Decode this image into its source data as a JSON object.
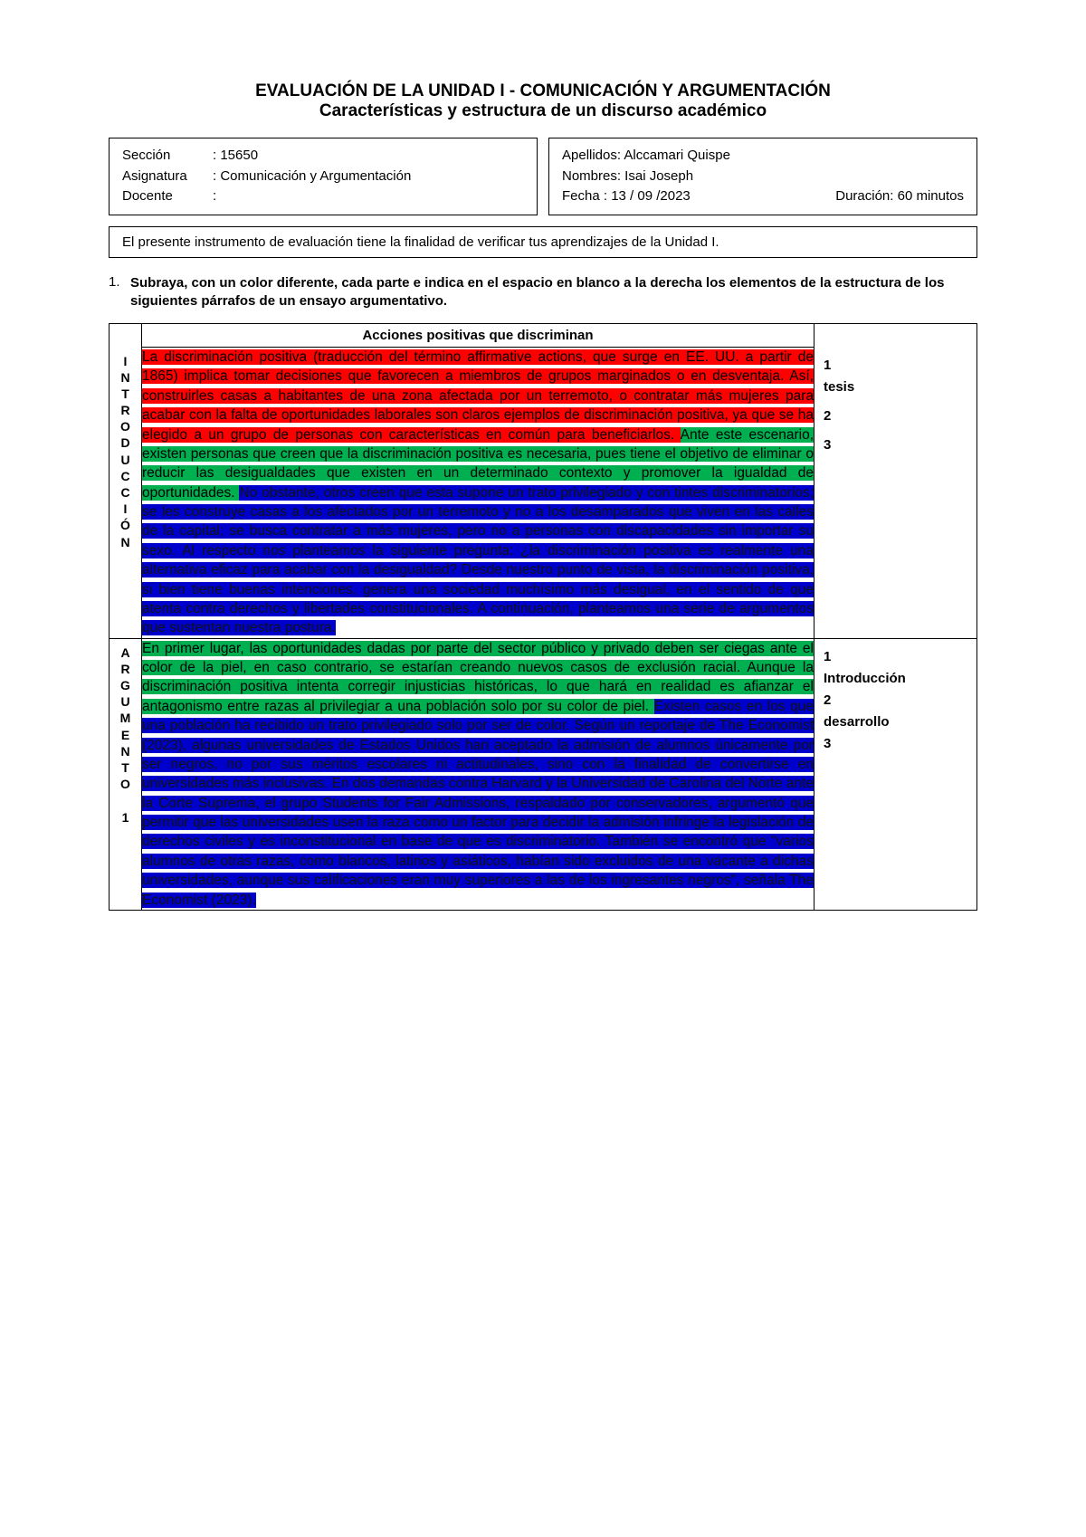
{
  "title_line1": "EVALUACIÓN DE LA UNIDAD I - COMUNICACIÓN Y ARGUMENTACIÓN",
  "title_line2": "Características y estructura de un discurso académico",
  "left_info": {
    "seccion_lbl": "Sección",
    "seccion_val": ": 15650",
    "asignatura_lbl": "Asignatura",
    "asignatura_val": ": Comunicación y Argumentación",
    "docente_lbl": "Docente",
    "docente_val": ":"
  },
  "right_info": {
    "apellidos": "Apellidos: Alccamari Quispe",
    "nombres": "Nombres: Isai Joseph",
    "fecha": "Fecha   :  13 / 09 /2023",
    "duracion": "Duración: 60 minutos"
  },
  "intro_text": "El presente instrumento de evaluación tiene la finalidad de verificar tus aprendizajes de la Unidad I.",
  "q_num": "1.",
  "q_text": "Subraya, con un color diferente, cada parte e indica en el espacio en blanco a la derecha los elementos de la estructura de los siguientes párrafos de un ensayo argumentativo.",
  "table_header": "Acciones positivas que discriminan",
  "row1": {
    "side": "INTRODUCCIÓN",
    "red": "La discriminación positiva (traducción del término affirmative actions, que surge en EE. UU. a partir de 1865) implica tomar decisiones que favorecen a miembros de grupos marginados o en desventaja. Así, construirles casas a habitantes de una zona afectada por un terremoto, o contratar más mujeres para acabar con la falta de oportunidades laborales son claros ejemplos de discriminación positiva, ya que se ha elegido a un grupo de personas con características en común para beneficiarlos. ",
    "green": "Ante este escenario, existen personas que creen que la discriminación positiva es necesaria, pues tiene el objetivo de eliminar o reducir las desigualdades que existen en un determinado contexto y promover la igualdad de oportunidades. ",
    "blue": "No obstante, otros creen que esta supone un trato privilegiado y con tintes discriminatorios; se les construye casas a los afectados por un terremoto y no a los desamparados que viven en las calles de la capital; se busca contratar a más mujeres, pero no a personas con discapacidades sin importar su sexo. Al respecto nos planteamos la siguiente pregunta: ¿la discriminación positiva es realmente una alternativa eficaz para acabar con la desigualdad? Desde nuestro punto de vista, la discriminación positiva, si bien tiene buenas intenciones, genera una sociedad muchísimo más desigual, en el sentido de que atenta contra derechos y libertades constitucionales. A continuación, planteamos una serie de argumentos que sustentan nuestra postura.",
    "notes1": "1",
    "notes2": "tesis",
    "notes3": "2",
    "notes4": "3"
  },
  "row2": {
    "side": "ARGUMENTO 1",
    "green": "En primer lugar, las oportunidades dadas por parte del sector público y privado deben ser ciegas ante el color de la piel, en caso contrario, se estarían creando nuevos casos de exclusión racial. Aunque la discriminación positiva intenta corregir injusticias históricas, lo que hará en realidad es afianzar el antagonismo entre razas al privilegiar a una población solo por su color de piel. ",
    "blue": "Existen casos en los que una población ha recibido un trato privilegiado solo por ser de color. Según un reportaje de The Economist (2023), algunas universidades de Estados Unidos han aceptado la admisión de alumnos únicamente por ser negros, no por sus méritos escolares ni actitudinales, sino con la finalidad de convertirse en universidades más inclusivas. En dos demandas contra Harvard y la Universidad de Carolina del Norte ante la Corte Suprema, el grupo Students for Fair Admissions, respaldado por conservadores, argumentó que permitir que las universidades usen la raza como un factor para decidir la admisión infringe la legislación de derechos civiles y es inconstitucional en base de que es discriminatorio. También se encontró que \"varios alumnos de otras razas, como blancos, latinos y asiáticos, habían sido excluidos de una vacante a dichas universidades, aunque sus calificaciones eran muy superiores a las de los ingresantes negros\", señala The Economist (2023).",
    "notes1": "1",
    "notes2": "Introducción",
    "notes3": "2",
    "notes4": "desarrollo",
    "notes5": "3"
  },
  "colors": {
    "red": "#ff0000",
    "green": "#00b050",
    "blue": "#0000cc"
  }
}
